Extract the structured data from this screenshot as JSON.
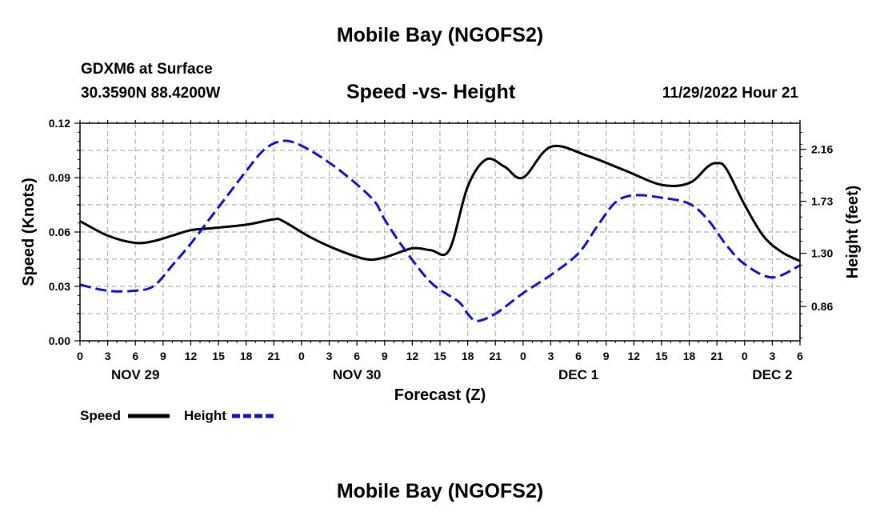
{
  "header": {
    "title": "Mobile Bay (NGOFS2)",
    "station": "GDXM6 at Surface",
    "coords": "30.3590N  88.4200W",
    "chart_title": "Speed -vs- Height",
    "timestamp": "11/29/2022 Hour 21"
  },
  "footer": {
    "title": "Mobile Bay (NGOFS2)"
  },
  "colors": {
    "speed": "#000000",
    "height": "#1010c8",
    "grid": "#b4b4b4"
  },
  "chart_data": {
    "type": "line",
    "title": "Speed -vs- Height",
    "xlabel": "Forecast (Z)",
    "ylabel": "Speed (Knots)",
    "y2label": "Height (feet)",
    "x_range_hours": [
      0,
      78
    ],
    "x_tick_step_hours": 3,
    "x_tick_labels": [
      "0",
      "3",
      "6",
      "9",
      "12",
      "15",
      "18",
      "21",
      "0",
      "3",
      "6",
      "9",
      "12",
      "15",
      "18",
      "21",
      "0",
      "3",
      "6",
      "9",
      "12",
      "15",
      "18",
      "21",
      "0",
      "3",
      "6"
    ],
    "date_labels": [
      {
        "hour": 6,
        "label": "NOV 29"
      },
      {
        "hour": 30,
        "label": "NOV 30"
      },
      {
        "hour": 54,
        "label": "DEC 1"
      },
      {
        "hour": 75,
        "label": "DEC 2"
      }
    ],
    "ylim": [
      0,
      0.12
    ],
    "yticks": [
      "0.00",
      "0.03",
      "0.06",
      "0.09",
      "0.12"
    ],
    "ylim2": [
      0.576,
      2.376
    ],
    "yticks2": [
      0.86,
      1.3,
      1.73,
      2.16
    ],
    "yticks2_labels": [
      "0.86",
      "1.30",
      "1.73",
      "2.16"
    ],
    "grid": true,
    "legend": [
      {
        "name": "Speed",
        "style": "solid"
      },
      {
        "name": "Height",
        "style": "dashed"
      }
    ],
    "series": [
      {
        "name": "Speed",
        "axis": "left",
        "style": "solid",
        "x": [
          0,
          3,
          6,
          8,
          10,
          12,
          14,
          18,
          21,
          22,
          25,
          28,
          31,
          33,
          36,
          38,
          40,
          42,
          44,
          46,
          48,
          51,
          55,
          59,
          63,
          66,
          68,
          69,
          70,
          72,
          74,
          76,
          78
        ],
        "y": [
          0.066,
          0.058,
          0.054,
          0.055,
          0.058,
          0.061,
          0.062,
          0.064,
          0.067,
          0.066,
          0.057,
          0.05,
          0.045,
          0.046,
          0.051,
          0.05,
          0.05,
          0.085,
          0.1,
          0.096,
          0.09,
          0.107,
          0.102,
          0.094,
          0.086,
          0.087,
          0.096,
          0.098,
          0.095,
          0.075,
          0.058,
          0.049,
          0.044
        ]
      },
      {
        "name": "Height",
        "axis": "right",
        "style": "dashed",
        "x": [
          0,
          3,
          6,
          8,
          10,
          12,
          14,
          16,
          18,
          20,
          22,
          24,
          27,
          30,
          32,
          33,
          35,
          38,
          41,
          42,
          43,
          45,
          48,
          51,
          54,
          56,
          58,
          60,
          63,
          66,
          68,
          70,
          72,
          75,
          78
        ],
        "y": [
          1.04,
          0.99,
          0.99,
          1.03,
          1.2,
          1.38,
          1.58,
          1.78,
          1.98,
          2.16,
          2.23,
          2.19,
          2.05,
          1.87,
          1.72,
          1.58,
          1.35,
          1.06,
          0.9,
          0.8,
          0.74,
          0.8,
          0.97,
          1.12,
          1.3,
          1.52,
          1.72,
          1.78,
          1.76,
          1.71,
          1.58,
          1.37,
          1.21,
          1.1,
          1.2
        ]
      }
    ]
  }
}
